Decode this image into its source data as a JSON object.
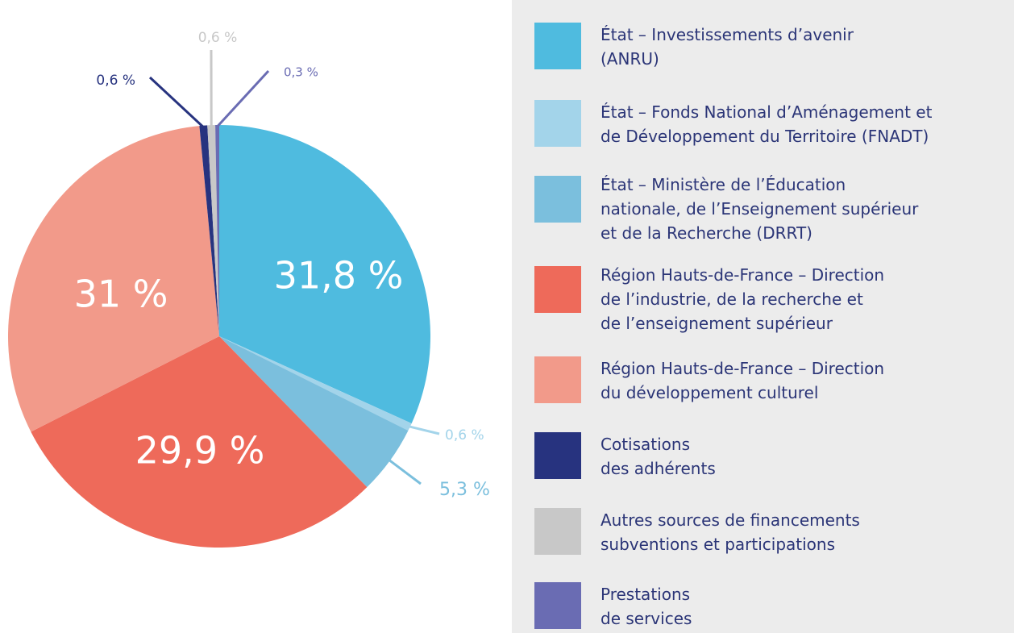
{
  "chart_data": {
    "type": "pie",
    "categories": [
      "État – Investissements d’avenir\n(ANRU)",
      "État – Fonds National d’Aménagement et\nde Développement du Territoire (FNADT)",
      "État – Ministère de l’Éducation\nnationale, de l’Enseignement supérieur\net de la Recherche (DRRT)",
      "Région Hauts-de-France – Direction\nde l’industrie, de la recherche et\nde l’enseignement supérieur",
      "Région Hauts-de-France – Direction\ndu développement culturel",
      "Cotisations\ndes adhérents",
      "Autres sources de financements\nsubventions et participations",
      "Prestations\nde services"
    ],
    "values": [
      31.8,
      0.6,
      5.3,
      29.9,
      31,
      0.6,
      0.6,
      0.3
    ],
    "value_labels": [
      "31,8 %",
      "0,6 %",
      "5,3 %",
      "29,9 %",
      "31 %",
      "0,6 %",
      "0,6 %",
      "0,3 %"
    ],
    "colors": [
      "#4fbbdf",
      "#a3d4ea",
      "#7bbfdd",
      "#ee6a5a",
      "#f29a8a",
      "#27337f",
      "#c8c8c8",
      "#6a6cb3"
    ],
    "legend": "right"
  }
}
